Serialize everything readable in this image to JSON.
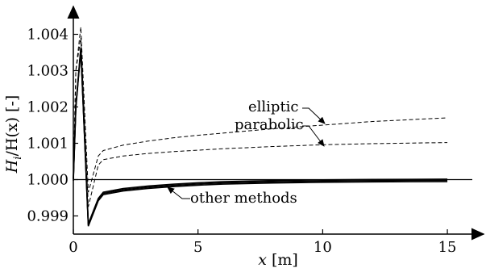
{
  "chart_data": {
    "type": "line",
    "xlabel_var": "x",
    "xlabel_unit": " [m]",
    "ylabel_var": "H",
    "ylabel_sub": "i",
    "ylabel_rest": "/H(x) [-]",
    "xlim": [
      0,
      16
    ],
    "ylim": [
      0.9985,
      1.0045
    ],
    "x_ticks": [
      0,
      5,
      10,
      15
    ],
    "x_tick_labels": [
      "0",
      "5",
      "10",
      "15"
    ],
    "y_ticks": [
      0.999,
      1.0,
      1.001,
      1.002,
      1.003,
      1.004
    ],
    "y_tick_labels": [
      "0.999",
      "1.000",
      "1.001",
      "1.002",
      "1.003",
      "1.004"
    ],
    "reference_line": 1.0,
    "grid": false,
    "series": [
      {
        "name": "elliptic",
        "style": "dashed",
        "x": [
          0,
          0.1,
          0.3,
          0.6,
          1.0,
          1.2,
          2,
          3,
          4,
          5,
          6,
          8,
          10,
          12,
          15
        ],
        "y": [
          1.0,
          1.003,
          1.0042,
          0.99965,
          1.00065,
          1.0008,
          1.00095,
          1.00106,
          1.00115,
          1.00122,
          1.00128,
          1.0014,
          1.0015,
          1.0016,
          1.0017
        ]
      },
      {
        "name": "parabolic",
        "style": "dashed",
        "x": [
          0,
          0.1,
          0.3,
          0.6,
          1.0,
          1.2,
          2,
          3,
          4,
          5,
          6,
          8,
          10,
          12,
          15
        ],
        "y": [
          1.0,
          1.003,
          1.0039,
          0.99925,
          1.0004,
          1.00055,
          1.00065,
          1.00072,
          1.00077,
          1.00081,
          1.00085,
          1.00091,
          1.00096,
          1.00099,
          1.00102
        ]
      },
      {
        "name": "other methods",
        "style": "solid-bundle",
        "x": [
          0,
          0.1,
          0.3,
          0.6,
          1.0,
          1.2,
          2,
          3,
          4,
          5,
          6,
          8,
          10,
          12,
          15
        ],
        "y": [
          1.0,
          1.002,
          1.0036,
          0.99875,
          0.99945,
          0.99962,
          0.99972,
          0.99979,
          0.99984,
          0.99988,
          0.99991,
          0.99994,
          0.99996,
          0.99997,
          0.99998
        ]
      }
    ],
    "annotations": [
      {
        "text": "elliptic",
        "points_to_series": "elliptic"
      },
      {
        "text": "parabolic",
        "points_to_series": "parabolic"
      },
      {
        "text": "other methods",
        "points_to_series": "other methods"
      }
    ]
  }
}
